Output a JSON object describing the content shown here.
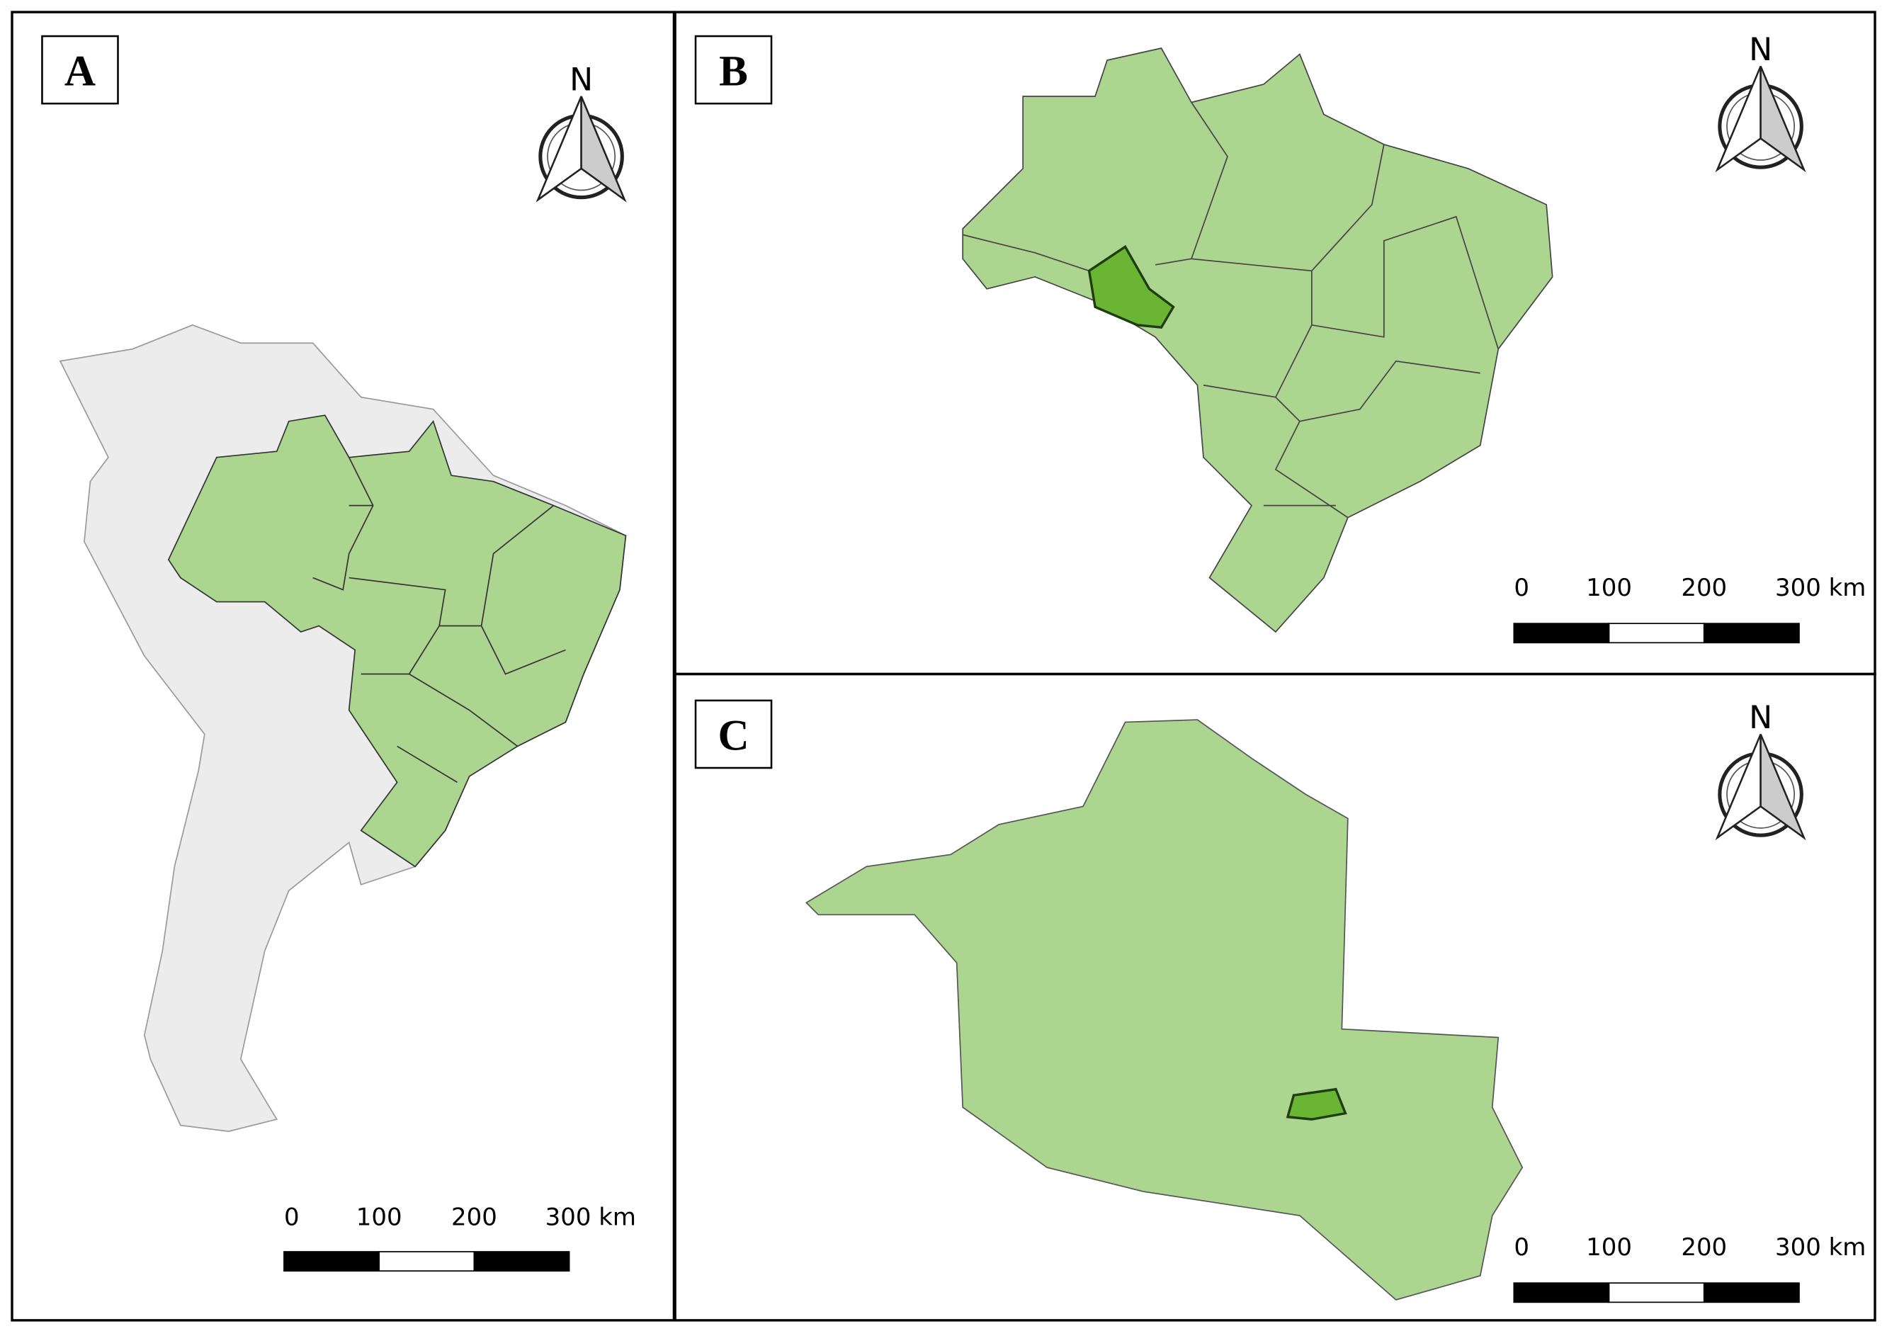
{
  "panels": [
    {
      "label": "A",
      "north": "N",
      "scale": [
        "0",
        "100",
        "200",
        "300 km"
      ]
    },
    {
      "label": "B",
      "north": "N",
      "scale": [
        "0",
        "100",
        "200",
        "300 km"
      ]
    },
    {
      "label": "C",
      "north": "N",
      "scale": [
        "0",
        "100",
        "200",
        "300 km"
      ]
    }
  ]
}
